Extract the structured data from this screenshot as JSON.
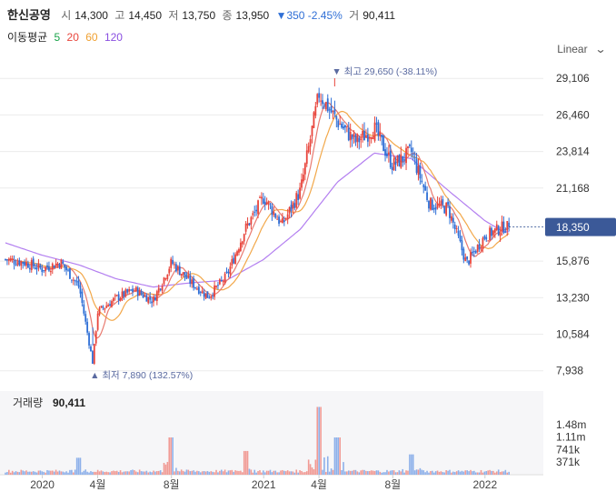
{
  "header": {
    "name": "한신공영",
    "open_label": "시",
    "open": "14,300",
    "high_label": "고",
    "high": "14,450",
    "low_label": "저",
    "low": "13,750",
    "close_label": "종",
    "close": "13,950",
    "change": "▼350 -2.45%",
    "volume_label": "거",
    "volume": "90,411"
  },
  "ma": {
    "label": "이동평균",
    "periods": [
      {
        "label": "5",
        "color": "#1aa34a"
      },
      {
        "label": "20",
        "color": "#e8453c"
      },
      {
        "label": "60",
        "color": "#f0a030"
      },
      {
        "label": "120",
        "color": "#8a4fe0"
      }
    ]
  },
  "scale_selector": {
    "label": "Linear",
    "icon": "chevron-down-icon"
  },
  "colors": {
    "up": "#e8453c",
    "down": "#2f6fd6",
    "badge": "#3b5998",
    "grid": "#ececec",
    "ma120": "#b37ff0",
    "ma60": "#f2a84a",
    "ma20": "#e8796f"
  },
  "chart_data": [
    {
      "type": "candlestick",
      "title": "",
      "y_ticks": [
        "29,106",
        "26,460",
        "23,814",
        "21,168",
        "15,876",
        "13,230",
        "10,584",
        "7,938"
      ],
      "ylim": [
        6800,
        30700
      ],
      "x_ticks": [
        "2020",
        "4월",
        "8월",
        "2021",
        "4월",
        "8월",
        "2022"
      ],
      "current_price_badge": "18,350",
      "max_annotation": "최고 29,650 (-38.11%)",
      "min_annotation": "최저 7,890 (132.57%)",
      "close_path": {
        "x": [
          "2019-11",
          "2019-12",
          "2020-01",
          "2020-02",
          "2020-03",
          "2020-03-23",
          "2020-04",
          "2020-05",
          "2020-06",
          "2020-07",
          "2020-08",
          "2020-09",
          "2020-10",
          "2020-11",
          "2020-12",
          "2021-01",
          "2021-02",
          "2021-03",
          "2021-04",
          "2021-05",
          "2021-06",
          "2021-07",
          "2021-08",
          "2021-09",
          "2021-10",
          "2021-11",
          "2021-12",
          "2022-01",
          "2022-02"
        ],
        "values": [
          16000,
          15800,
          15300,
          15800,
          14000,
          8500,
          12200,
          13200,
          13800,
          13000,
          15800,
          14400,
          13300,
          14800,
          18200,
          20500,
          18500,
          21000,
          28000,
          26000,
          24500,
          25500,
          22800,
          23800,
          20000,
          19700,
          15700,
          17700,
          18350
        ]
      },
      "ma120_path": {
        "x": [
          "2019-11",
          "2020-01",
          "2020-03",
          "2020-05",
          "2020-07",
          "2020-09",
          "2020-11",
          "2021-01",
          "2021-03",
          "2021-05",
          "2021-07",
          "2021-09",
          "2021-11",
          "2022-01",
          "2022-02"
        ],
        "values": [
          17200,
          16300,
          15600,
          14600,
          14000,
          14300,
          14500,
          16000,
          18200,
          21600,
          23700,
          23300,
          21000,
          18800,
          18000
        ]
      }
    },
    {
      "type": "bar",
      "title": "거래량",
      "value": "90,411",
      "y_ticks": [
        "1.48m",
        "1.11m",
        "741k",
        "371k"
      ],
      "spikes": [
        {
          "x": "2020-03",
          "value": 500000
        },
        {
          "x": "2020-08",
          "value": 1100000
        },
        {
          "x": "2020-12",
          "value": 700000
        },
        {
          "x": "2021-04",
          "value": 2000000
        },
        {
          "x": "2021-05",
          "value": 1100000
        },
        {
          "x": "2021-09",
          "value": 600000
        }
      ]
    }
  ]
}
